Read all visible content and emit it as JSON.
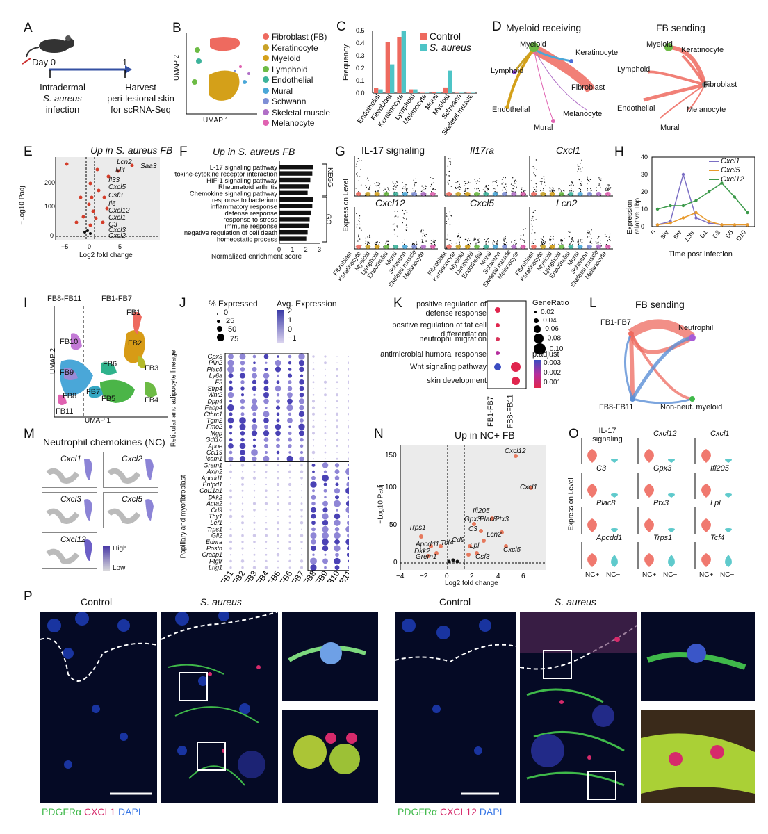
{
  "panels": {
    "A": {
      "letter": "A",
      "day0": "Day 0",
      "day1": "1",
      "left1": "Intradermal",
      "left2": "S. aureus",
      "left3": "infection",
      "right1": "Harvest",
      "right2": "peri-lesional skin",
      "right3": "for scRNA-Seq"
    },
    "B": {
      "letter": "B",
      "xlabel": "UMAP 1",
      "ylabel": "UMAP 2",
      "legend": [
        {
          "label": "Fibroblast (FB)",
          "color": "#ee6a5f"
        },
        {
          "label": "Keratinocyte",
          "color": "#c9a227"
        },
        {
          "label": "Myeloid",
          "color": "#d4a019"
        },
        {
          "label": "Lymphoid",
          "color": "#6dbb45"
        },
        {
          "label": "Endothelial",
          "color": "#3db39b"
        },
        {
          "label": "Mural",
          "color": "#4aa7d8"
        },
        {
          "label": "Schwann",
          "color": "#7e8fd6"
        },
        {
          "label": "Skeletal muscle",
          "color": "#b06fc7"
        },
        {
          "label": "Melanocyte",
          "color": "#e062b1"
        }
      ]
    },
    "C": {
      "letter": "C",
      "ylabel": "Frequency",
      "legend_control": "Control",
      "legend_sa": "S. aureus"
    },
    "D": {
      "letter": "D",
      "title_left": "Myeloid receiving",
      "title_right": "FB sending",
      "left_nodes": [
        "Myeloid",
        "Keratinocyte",
        "Lymphoid",
        "Fibroblast",
        "Endothelial",
        "Melanocyte",
        "Mural"
      ],
      "right_nodes": [
        "Myeloid",
        "Keratinocyte",
        "Lymphoid",
        "Fibroblast",
        "Endothelial",
        "Melanocyte",
        "Mural"
      ]
    },
    "E": {
      "letter": "E",
      "title": "Up in S. aureus FB",
      "ylabel": "−Log10 Padj",
      "xlabel": "Log2 fold change",
      "genes": [
        "Lcn2",
        "Saa3",
        "Mif",
        "Il33",
        "Cxcl5",
        "Csf3",
        "Il6",
        "Cxcl12",
        "Cxcl1",
        "C3",
        "Cxcl3",
        "Cxcl2"
      ]
    },
    "F": {
      "letter": "F",
      "title": "Up in S. aureus FB",
      "xlabel": "Normalized enrichment score",
      "kegg": "KEGG",
      "go": "GO"
    },
    "G": {
      "letter": "G",
      "ylabel": "Expression Level",
      "titles": [
        "IL-17 signaling",
        "Il17ra",
        "Cxcl1",
        "Cxcl12",
        "Cxcl5",
        "Lcn2"
      ],
      "cells": [
        "Fibroblast",
        "Keratinocyte",
        "Myeloid",
        "Lymphoid",
        "Endothelial",
        "Mural",
        "Schwann",
        "Skeletal muscle",
        "Melanocyte"
      ]
    },
    "H": {
      "letter": "H",
      "ylabel1": "Expression",
      "ylabel2": "relative Tbp",
      "xlabel": "Time post infection",
      "legend": [
        "Cxcl1",
        "Cxcl5",
        "Cxcl12"
      ]
    },
    "I": {
      "letter": "I",
      "label_left": "FB8-FB11",
      "label_right": "FB1-FB7",
      "xlabel": "UMAP 1",
      "ylabel": "UMAP 2",
      "clusters": [
        "FB1",
        "FB2",
        "FB3",
        "FB4",
        "FB5",
        "FB6",
        "FB7",
        "FB8",
        "FB9",
        "FB10",
        "FB11"
      ]
    },
    "J": {
      "letter": "J",
      "pct_title": "% Expressed",
      "avg_title": "Avg. Expression",
      "pct_vals": [
        "0",
        "25",
        "50",
        "75"
      ],
      "avg_vals": [
        "2",
        "1",
        "0",
        "−1"
      ],
      "group1": "Reticular and adipocyte lineage",
      "group2": "Papillary and myofibroblast"
    },
    "K": {
      "letter": "K",
      "generatio_title": "GeneRatio",
      "padj_title": "p.adjust",
      "generatio_vals": [
        "0.02",
        "0.04",
        "0.06",
        "0.08",
        "0.10"
      ],
      "padj_vals": [
        "0.003",
        "0.002",
        "0.001"
      ],
      "x_labels": [
        "FB1-FB7",
        "FB8-FB11"
      ]
    },
    "L": {
      "letter": "L",
      "title": "FB sending",
      "nodes": [
        "FB1-FB7",
        "Neutrophil",
        "FB8-FB11",
        "Non-neut. myeloid"
      ]
    },
    "M": {
      "letter": "M",
      "title": "Neutrophil chemokines (NC)",
      "genes": [
        "Cxcl1",
        "Cxcl2",
        "Cxcl3",
        "Cxcl5",
        "Cxcl12"
      ],
      "high": "High",
      "low": "Low"
    },
    "N": {
      "letter": "N",
      "title": "Up in NC+ FB",
      "ylabel": "−Log10 Padj",
      "xlabel": "Log2 fold change",
      "genes": [
        "Cxcl12",
        "Cxcl1",
        "Ifi205",
        "Gpx3",
        "Plac8",
        "Ptx3",
        "C3",
        "Lcn2",
        "Lpl",
        "Csf3",
        "Cxcl5",
        "Trps1",
        "Cd9",
        "Apcdd1",
        "Tcf4",
        "Dkk2",
        "Grem1"
      ]
    },
    "O": {
      "letter": "O",
      "ylabel": "Expression Level",
      "x_pos": "NC+",
      "x_neg": "NC−",
      "titles": [
        "IL-17 signaling",
        "Cxcl12",
        "Cxcl1",
        "C3",
        "Gpx3",
        "Ifi205",
        "Plac8",
        "Ptx3",
        "Lpl",
        "Apcdd1",
        "Trps1",
        "Tcf4"
      ]
    },
    "P": {
      "letter": "P",
      "control": "Control",
      "sa": "S. aureus",
      "legend_left": [
        {
          "text": "PDGFRα",
          "color": "#3fb94a"
        },
        {
          "text": "CXCL1",
          "color": "#d62a6b"
        },
        {
          "text": "DAPI",
          "color": "#3a78e6"
        }
      ],
      "legend_right": [
        {
          "text": "PDGFRα",
          "color": "#3fb94a"
        },
        {
          "text": "CXCL12",
          "color": "#d62a6b"
        },
        {
          "text": "DAPI",
          "color": "#3a78e6"
        }
      ]
    }
  },
  "chart_data": [
    {
      "type": "bar",
      "panel": "C",
      "categories": [
        "Endothelial",
        "Fibroblast",
        "Keratinocyte",
        "Lymphoid",
        "Melanocyte",
        "Mural",
        "Myeloid",
        "Schwann",
        "Skeletal muscle"
      ],
      "series": [
        {
          "name": "Control",
          "values": [
            0.04,
            0.41,
            0.45,
            0.03,
            0.003,
            0.01,
            0.045,
            0.003,
            0.003
          ]
        },
        {
          "name": "S. aureus",
          "values": [
            0.03,
            0.23,
            0.5,
            0.03,
            0.003,
            0.005,
            0.18,
            0.003,
            0.003
          ]
        }
      ],
      "ylim": [
        0,
        0.5
      ],
      "yticks": [
        "0.0",
        "0.1",
        "0.2",
        "0.3",
        "0.4",
        "0.5"
      ]
    },
    {
      "type": "bar",
      "panel": "F",
      "categories": [
        "IL-17 signaling pathway",
        "Cytokine-cytokine receptor interaction",
        "HIF-1 signaling pathway",
        "Rheumatoid arthritis",
        "Chemokine signaling pathway",
        "response to bacterium",
        "inflammatory response",
        "defense response",
        "response to stress",
        "immune response",
        "negative regulation of cell death",
        "homeostatic process"
      ],
      "values": [
        2.5,
        2.45,
        2.3,
        2.2,
        2.1,
        2.5,
        2.45,
        2.35,
        2.25,
        2.2,
        2.1,
        2.0
      ],
      "xlim": [
        0,
        3
      ],
      "xticks": [
        "0",
        "1",
        "2",
        "3"
      ]
    },
    {
      "type": "line",
      "panel": "H",
      "categories": [
        "0",
        "3hr",
        "6hr",
        "12hr",
        "D1",
        "D2",
        "D5",
        "D10"
      ],
      "series": [
        {
          "name": "Cxcl1",
          "values": [
            1,
            3,
            30,
            5,
            2,
            1,
            1,
            1
          ],
          "color": "#7b6fc4"
        },
        {
          "name": "Cxcl5",
          "values": [
            1,
            2,
            5,
            8,
            3,
            1,
            1,
            1
          ],
          "color": "#e89a2c"
        },
        {
          "name": "Cxcl12",
          "values": [
            10,
            12,
            12,
            15,
            20,
            25,
            17,
            8
          ],
          "color": "#3c9a4a"
        }
      ],
      "ylim": [
        0,
        40
      ],
      "yticks": [
        "0",
        "10",
        "20",
        "30",
        "40"
      ]
    }
  ]
}
